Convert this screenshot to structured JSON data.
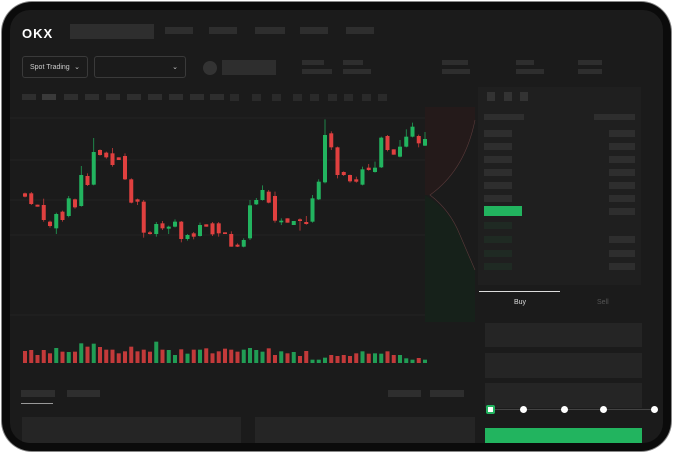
{
  "logo": "OKX",
  "trade_mode": {
    "label": "Spot Trading",
    "icon": "chevron-down-icon"
  },
  "pair_select": {
    "value": "",
    "icon": "chevron-down-icon"
  },
  "order_form": {
    "tabs": [
      {
        "label": "Buy",
        "active": true
      },
      {
        "label": "Sell",
        "active": false
      }
    ],
    "slider_percent": 0,
    "submit_color": "#22b45f"
  },
  "colors": {
    "up": "#22b45f",
    "down": "#e0403f",
    "bg": "#1b1b1b"
  },
  "chart_data": {
    "type": "candlestick",
    "candles": [
      [
        750,
        752,
        738,
        740
      ],
      [
        750,
        754,
        715,
        718
      ],
      [
        716,
        716,
        710,
        710
      ],
      [
        715,
        734,
        665,
        670
      ],
      [
        665,
        668,
        647,
        652
      ],
      [
        645,
        692,
        628,
        688
      ],
      [
        695,
        698,
        665,
        670
      ],
      [
        682,
        742,
        678,
        735
      ],
      [
        732,
        734,
        704,
        708
      ],
      [
        712,
        832,
        710,
        805
      ],
      [
        802,
        810,
        772,
        775
      ],
      [
        776,
        916,
        774,
        874
      ],
      [
        880,
        882,
        863,
        865
      ],
      [
        872,
        875,
        854,
        858
      ],
      [
        870,
        886,
        830,
        835
      ],
      [
        858,
        858,
        850,
        850
      ],
      [
        862,
        870,
        790,
        792
      ],
      [
        792,
        795,
        720,
        722
      ],
      [
        732,
        734,
        715,
        725
      ],
      [
        725,
        730,
        617,
        632
      ],
      [
        633,
        637,
        626,
        628
      ],
      [
        628,
        664,
        620,
        658
      ],
      [
        660,
        667,
        640,
        645
      ],
      [
        644,
        653,
        628,
        650
      ],
      [
        650,
        672,
        648,
        665
      ],
      [
        665,
        667,
        603,
        613
      ],
      [
        613,
        628,
        608,
        625
      ],
      [
        630,
        634,
        612,
        620
      ],
      [
        622,
        662,
        620,
        655
      ],
      [
        657,
        657,
        650,
        650
      ],
      [
        660,
        664,
        622,
        627
      ],
      [
        660,
        664,
        620,
        630
      ],
      [
        633,
        633,
        628,
        628
      ],
      [
        628,
        636,
        590,
        590
      ],
      [
        596,
        600,
        589,
        590
      ],
      [
        590,
        615,
        588,
        610
      ],
      [
        615,
        730,
        610,
        714
      ],
      [
        717,
        736,
        715,
        730
      ],
      [
        730,
        774,
        728,
        760
      ],
      [
        755,
        760,
        720,
        722
      ],
      [
        742,
        755,
        662,
        668
      ],
      [
        663,
        675,
        655,
        668
      ],
      [
        675,
        675,
        662,
        662
      ],
      [
        655,
        667,
        655,
        667
      ],
      [
        672,
        675,
        638,
        667
      ],
      [
        664,
        682,
        656,
        658
      ],
      [
        665,
        745,
        662,
        735
      ],
      [
        732,
        792,
        730,
        785
      ],
      [
        783,
        972,
        780,
        925
      ],
      [
        930,
        936,
        880,
        888
      ],
      [
        888,
        890,
        795,
        805
      ],
      [
        814,
        816,
        802,
        805
      ],
      [
        805,
        806,
        782,
        786
      ],
      [
        792,
        800,
        782,
        785
      ],
      [
        776,
        830,
        774,
        822
      ],
      [
        827,
        838,
        818,
        820
      ],
      [
        814,
        845,
        812,
        827
      ],
      [
        828,
        920,
        826,
        917
      ],
      [
        922,
        925,
        876,
        880
      ],
      [
        882,
        882,
        866,
        866
      ],
      [
        860,
        910,
        858,
        890
      ],
      [
        890,
        942,
        888,
        920
      ],
      [
        920,
        962,
        918,
        950
      ],
      [
        922,
        926,
        888,
        900
      ],
      [
        893,
        934,
        892,
        913
      ]
    ],
    "volume": [
      36,
      39,
      24,
      39,
      29,
      45,
      34,
      33,
      34,
      59,
      49,
      58,
      48,
      40,
      40,
      29,
      35,
      49,
      35,
      40,
      34,
      64,
      40,
      39,
      24,
      41,
      28,
      40,
      40,
      44,
      29,
      35,
      43,
      40,
      34,
      40,
      45,
      39,
      34,
      44,
      24,
      35,
      29,
      33,
      21,
      36,
      10,
      10,
      16,
      24,
      21,
      24,
      21,
      29,
      35,
      28,
      29,
      28,
      35,
      24,
      24,
      14,
      10,
      15,
      10
    ]
  }
}
